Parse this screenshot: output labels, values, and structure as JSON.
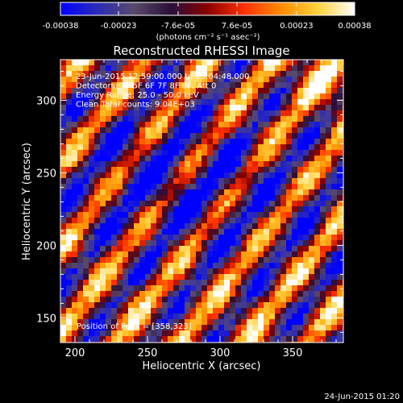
{
  "chart_data": {
    "type": "heatmap",
    "title": "Reconstructed RHESSI Image",
    "xlabel": "Heliocentric X (arcsec)",
    "ylabel": "Heliocentric Y (arcsec)",
    "xlim": [
      190,
      385
    ],
    "ylim": [
      133,
      328
    ],
    "xticks": [
      200,
      250,
      300,
      350
    ],
    "yticks": [
      150,
      200,
      250,
      300
    ],
    "colorbar": {
      "min": -0.00038,
      "max": 0.00038,
      "ticks": [
        -0.00038,
        -0.00023,
        -7.6e-05,
        7.6e-05,
        0.00023,
        0.00038
      ],
      "tick_labels": [
        "-0.00038",
        "-0.00023",
        "-7.6e-05",
        "7.6e-05",
        "0.00023",
        "0.00038"
      ],
      "label": "(photons cm⁻² s⁻¹ asec⁻²)",
      "colors": [
        "#0000ff",
        "#2b2bb8",
        "#5a4a6a",
        "#2a0f3a",
        "#8b0000",
        "#ff3000",
        "#ff8c00",
        "#ffd23c",
        "#ffffff"
      ]
    },
    "annotations": [
      "23-Jun-2015 12:59:00.000 to 13:04:48.000",
      "Detectors: 3F 5F 6F 7F 8F 9F, Att 0",
      "Energy Range: 25.0 - 50.0 keV",
      "Clean    Total counts: 9.04E+03"
    ],
    "peak_label": "Position of Peak = [358,323]",
    "peak_position": [
      358,
      323
    ],
    "timestamp": "24-Jun-2015 01:20",
    "pattern": {
      "description": "diagonal stripes running from upper-left to lower-right",
      "stripe_period_pixels": 7,
      "blue_region_center": [
        275,
        245
      ]
    }
  }
}
